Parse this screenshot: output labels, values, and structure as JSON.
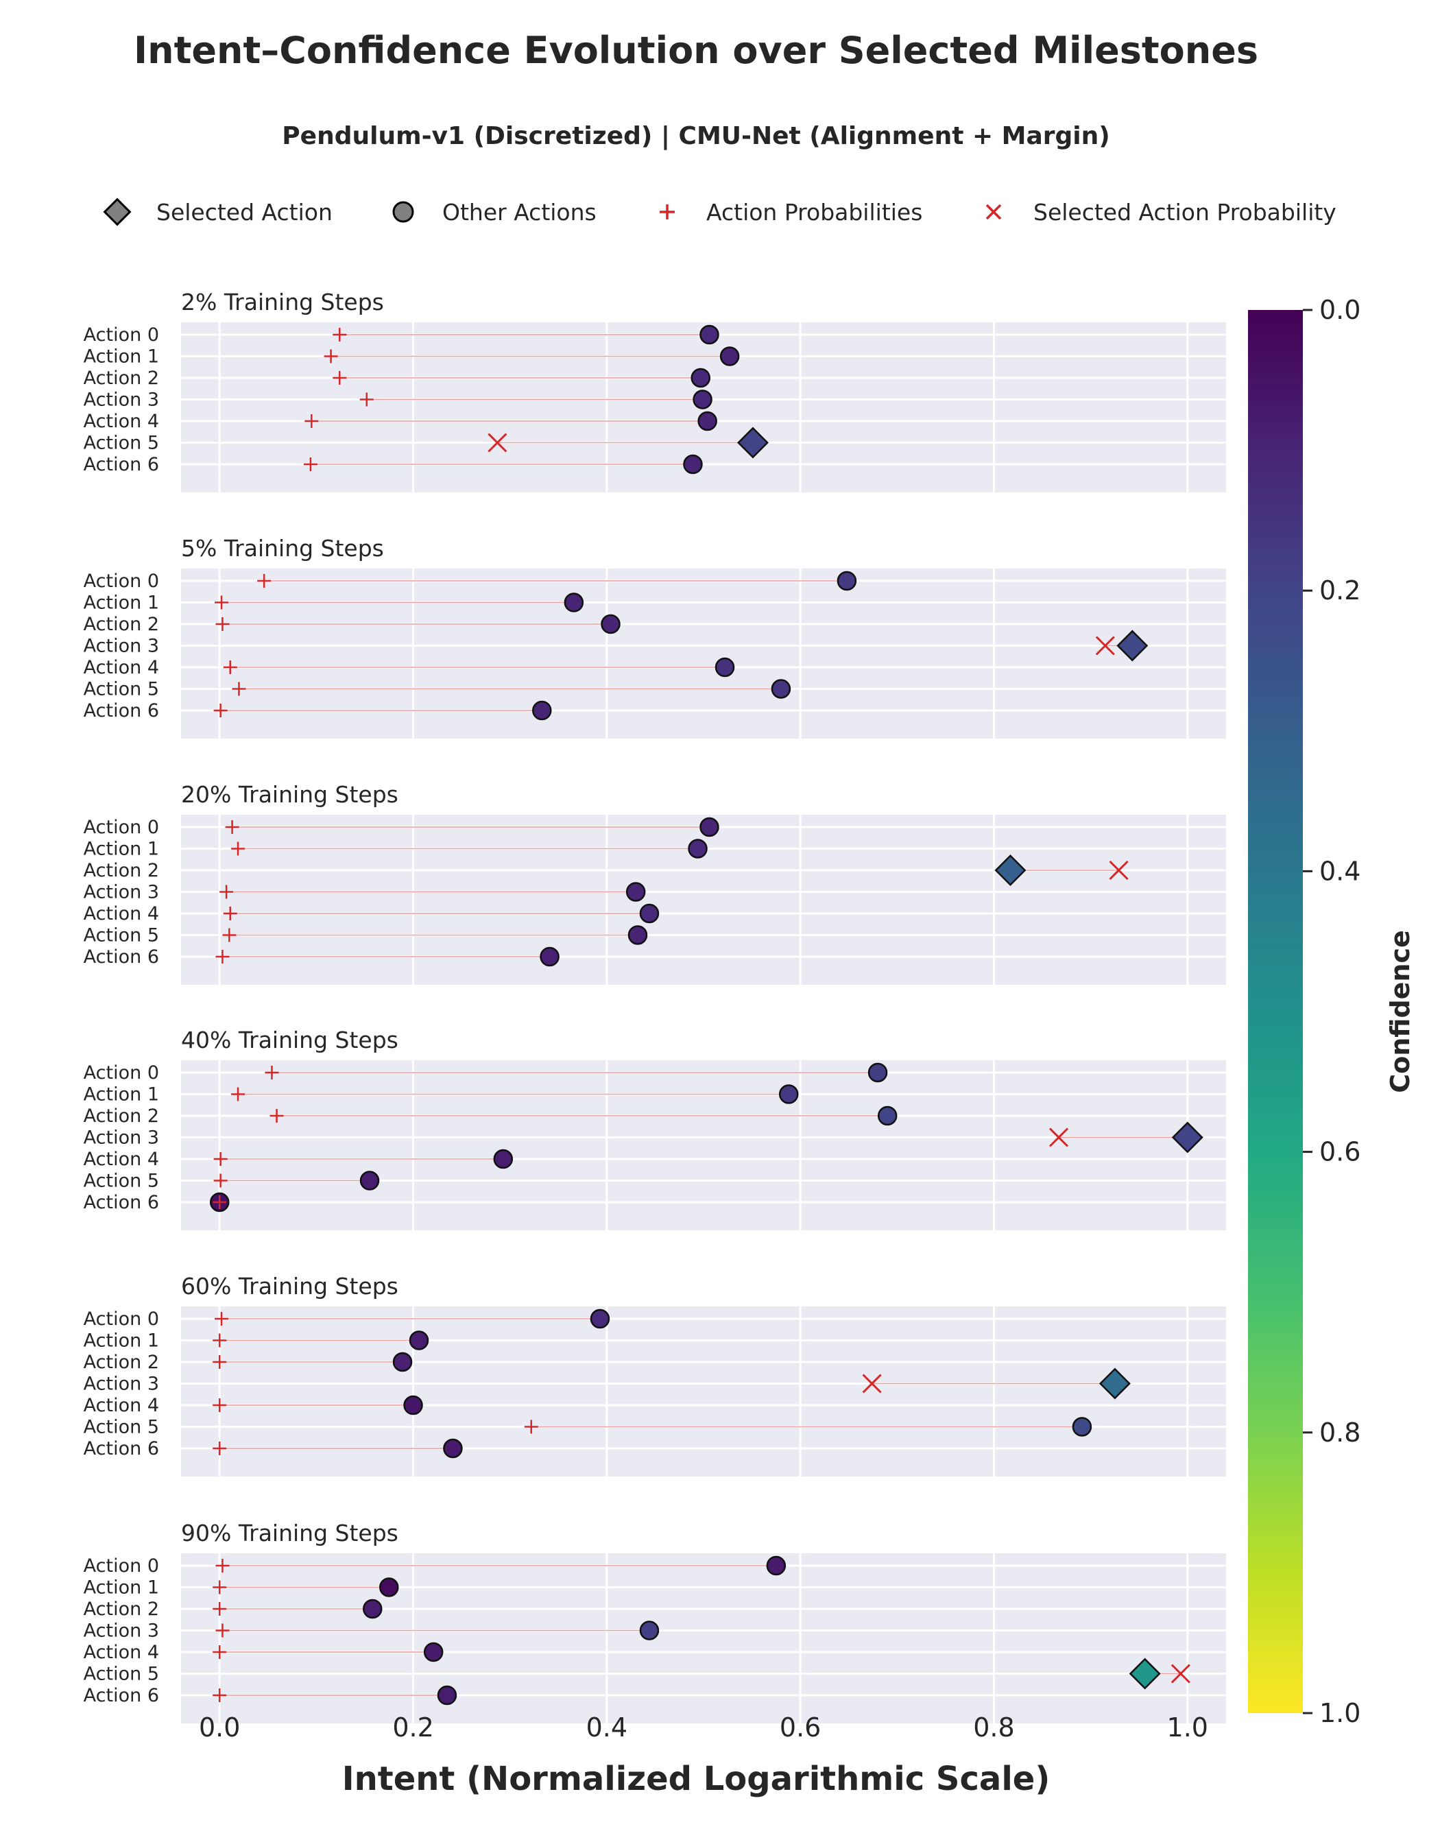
{
  "chart_data": {
    "type": "scatter",
    "title": "Intent–Confidence Evolution over Selected Milestones",
    "subtitle": "Pendulum-v1 (Discretized) | CMU-Net (Alignment + Margin)",
    "xlabel": "Intent (Normalized Logarithmic Scale)",
    "xlim": [
      -0.02,
      1.02
    ],
    "xticks": [
      "0.0",
      "0.2",
      "0.4",
      "0.6",
      "0.8",
      "1.0"
    ],
    "grid": true,
    "legend_position": "top",
    "legend": [
      {
        "label": "Selected Action",
        "marker": "diamond"
      },
      {
        "label": "Other Actions",
        "marker": "circle"
      },
      {
        "label": "Action Probabilities",
        "marker": "plus"
      },
      {
        "label": "Selected Action Probability",
        "marker": "x"
      }
    ],
    "colorbar": {
      "label": "Confidence",
      "colormap": "viridis",
      "range": [
        0.0,
        1.0
      ],
      "reversed": true,
      "ticks": [
        "0.0",
        "0.2",
        "0.4",
        "0.6",
        "0.8",
        "1.0"
      ]
    },
    "actions": [
      "Action 0",
      "Action 1",
      "Action 2",
      "Action 3",
      "Action 4",
      "Action 5",
      "Action 6"
    ],
    "panels": [
      {
        "title": "2% Training Steps",
        "selected": 5,
        "intent": [
          0.506,
          0.527,
          0.497,
          0.499,
          0.504,
          0.551,
          0.489
        ],
        "probability": [
          0.124,
          0.115,
          0.124,
          0.152,
          0.095,
          0.287,
          0.094
        ],
        "confidence": [
          0.12,
          0.1,
          0.11,
          0.11,
          0.1,
          0.2,
          0.1
        ]
      },
      {
        "title": "5% Training Steps",
        "selected": 3,
        "intent": [
          0.648,
          0.366,
          0.404,
          0.943,
          0.522,
          0.58,
          0.333
        ],
        "probability": [
          0.046,
          0.002,
          0.003,
          0.915,
          0.011,
          0.02,
          0.001
        ],
        "confidence": [
          0.17,
          0.1,
          0.1,
          0.22,
          0.14,
          0.15,
          0.1
        ]
      },
      {
        "title": "20% Training Steps",
        "selected": 2,
        "intent": [
          0.506,
          0.494,
          0.817,
          0.43,
          0.444,
          0.432,
          0.341
        ],
        "probability": [
          0.013,
          0.019,
          0.929,
          0.007,
          0.011,
          0.01,
          0.003
        ],
        "confidence": [
          0.1,
          0.12,
          0.3,
          0.1,
          0.12,
          0.1,
          0.09
        ]
      },
      {
        "title": "40% Training Steps",
        "selected": 3,
        "intent": [
          0.68,
          0.588,
          0.69,
          1.0,
          0.293,
          0.155,
          0.0
        ],
        "probability": [
          0.054,
          0.019,
          0.059,
          0.867,
          0.001,
          0.001,
          0.0
        ],
        "confidence": [
          0.18,
          0.17,
          0.2,
          0.2,
          0.08,
          0.08,
          0.04
        ]
      },
      {
        "title": "60% Training Steps",
        "selected": 3,
        "intent": [
          0.393,
          0.206,
          0.189,
          0.925,
          0.2,
          0.891,
          0.241
        ],
        "probability": [
          0.002,
          0.0,
          0.0,
          0.674,
          0.0,
          0.322,
          0.0
        ],
        "confidence": [
          0.12,
          0.08,
          0.09,
          0.35,
          0.06,
          0.22,
          0.07
        ]
      },
      {
        "title": "90% Training Steps",
        "selected": 5,
        "intent": [
          0.575,
          0.175,
          0.158,
          0.444,
          0.221,
          0.956,
          0.235
        ],
        "probability": [
          0.003,
          0.0,
          0.0,
          0.003,
          0.0,
          0.993,
          0.0
        ],
        "confidence": [
          0.07,
          0.03,
          0.08,
          0.18,
          0.07,
          0.52,
          0.08
        ]
      }
    ]
  }
}
